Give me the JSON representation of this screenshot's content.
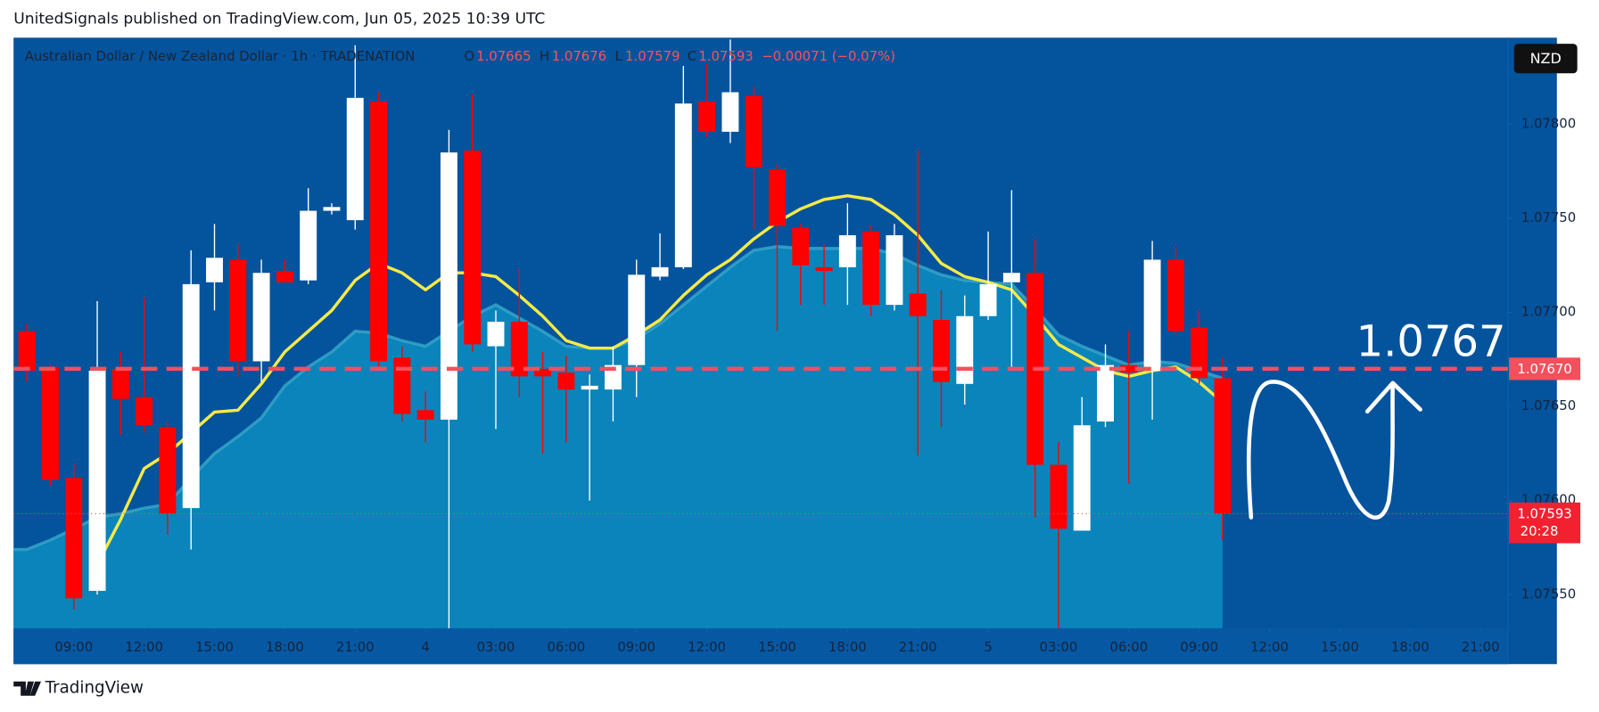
{
  "header": {
    "text": "UnitedSignals published on TradingView.com, Jun 05, 2025 10:39 UTC"
  },
  "footer": {
    "brand": "TradingView"
  },
  "chart_data": {
    "type": "candlestick",
    "title": "Australian Dollar / New Zealand Dollar · 1h · TRADENATION",
    "ohlc_letters": [
      "O",
      "H",
      "L",
      "C"
    ],
    "change": "−0.00071 (−0.07%)",
    "currency": "NZD",
    "countdown": "20:28",
    "up_color": "#ffffff",
    "down_color": "#ff0000",
    "grid": false,
    "candles": {
      "open": [
        1.0769,
        1.07671,
        1.07612,
        1.07552,
        1.0767,
        1.07655,
        1.07639,
        1.07596,
        1.07716,
        1.07728,
        1.07674,
        1.07722,
        1.07717,
        1.07754,
        1.07749,
        1.07812,
        1.07676,
        1.07648,
        1.07643,
        1.07786,
        1.07682,
        1.07695,
        1.0767,
        1.07668,
        1.07659,
        1.07659,
        1.07672,
        1.07719,
        1.07724,
        1.07812,
        1.07796,
        1.07815,
        1.07776,
        1.07745,
        1.07724,
        1.07724,
        1.07743,
        1.07704,
        1.0771,
        1.07696,
        1.07662,
        1.07698,
        1.07716,
        1.07721,
        1.07619,
        1.07584,
        1.07642,
        1.07672,
        1.07669,
        1.07728,
        1.07692,
        1.07665
      ],
      "high": [
        1.07694,
        1.07672,
        1.0762,
        1.07706,
        1.07679,
        1.07708,
        1.07642,
        1.07733,
        1.07747,
        1.07736,
        1.07728,
        1.07728,
        1.07766,
        1.07758,
        1.07842,
        1.07817,
        1.07682,
        1.07658,
        1.07797,
        1.07816,
        1.07701,
        1.07723,
        1.07679,
        1.07677,
        1.07667,
        1.07682,
        1.07728,
        1.07742,
        1.07831,
        1.07832,
        1.07845,
        1.0782,
        1.07779,
        1.07747,
        1.07736,
        1.07758,
        1.07746,
        1.07747,
        1.07786,
        1.07712,
        1.07709,
        1.07743,
        1.07765,
        1.07739,
        1.07631,
        1.07655,
        1.07683,
        1.0769,
        1.07738,
        1.07735,
        1.07701,
        1.07676
      ],
      "low": [
        1.07663,
        1.07608,
        1.07542,
        1.0755,
        1.07635,
        1.07636,
        1.07582,
        1.07574,
        1.07701,
        1.07666,
        1.07663,
        1.07716,
        1.07715,
        1.07752,
        1.07744,
        1.07671,
        1.07642,
        1.07631,
        1.07532,
        1.07679,
        1.07638,
        1.07655,
        1.07625,
        1.07631,
        1.076,
        1.07642,
        1.07655,
        1.07717,
        1.07723,
        1.07793,
        1.0779,
        1.07744,
        1.0769,
        1.07704,
        1.07704,
        1.07704,
        1.07698,
        1.07701,
        1.07624,
        1.07639,
        1.07651,
        1.07696,
        1.07671,
        1.07591,
        1.07532,
        1.07584,
        1.07639,
        1.07609,
        1.07643,
        1.07688,
        1.07662,
        1.07579
      ],
      "close": [
        1.07669,
        1.07611,
        1.07548,
        1.07669,
        1.07654,
        1.0764,
        1.07593,
        1.07715,
        1.07729,
        1.07674,
        1.07721,
        1.07716,
        1.07754,
        1.07756,
        1.07814,
        1.07674,
        1.07646,
        1.07643,
        1.07785,
        1.07683,
        1.07695,
        1.07666,
        1.07666,
        1.07659,
        1.07661,
        1.07672,
        1.0772,
        1.07724,
        1.07811,
        1.07796,
        1.07817,
        1.07777,
        1.07746,
        1.07725,
        1.07722,
        1.07741,
        1.07704,
        1.07741,
        1.07698,
        1.07663,
        1.07698,
        1.07715,
        1.07721,
        1.07619,
        1.07585,
        1.0764,
        1.07672,
        1.07668,
        1.07728,
        1.0769,
        1.07665,
        1.07593
      ]
    },
    "series": [
      {
        "type": "area",
        "color": "#0a84bb",
        "line_color": "#3aa6c9",
        "values": [
          1.07574,
          1.07579,
          1.07585,
          1.07591,
          1.07593,
          1.07596,
          1.07598,
          1.07612,
          1.07625,
          1.07634,
          1.07644,
          1.07661,
          1.07671,
          1.07679,
          1.0769,
          1.07689,
          1.07685,
          1.07682,
          1.0769,
          1.07698,
          1.07704,
          1.07697,
          1.0769,
          1.07682,
          1.07681,
          1.07681,
          1.07686,
          1.07694,
          1.07704,
          1.07714,
          1.07724,
          1.07733,
          1.07735,
          1.07734,
          1.07734,
          1.07734,
          1.07734,
          1.07731,
          1.07725,
          1.0772,
          1.07717,
          1.07716,
          1.07715,
          1.07702,
          1.07688,
          1.07682,
          1.07677,
          1.07672,
          1.07674,
          1.07673,
          1.07669,
          1.07665
        ]
      },
      {
        "type": "line",
        "color": "#f7ea48",
        "values": [
          null,
          null,
          null,
          1.07566,
          1.0759,
          1.07617,
          1.07625,
          1.07636,
          1.07647,
          1.07648,
          1.07662,
          1.07679,
          1.0769,
          1.07701,
          1.07717,
          1.07726,
          1.07721,
          1.07712,
          1.07721,
          1.07721,
          1.07719,
          1.07709,
          1.07698,
          1.07685,
          1.07681,
          1.07681,
          1.07688,
          1.07696,
          1.07709,
          1.0772,
          1.07728,
          1.07739,
          1.07748,
          1.07755,
          1.0776,
          1.07762,
          1.0776,
          1.07752,
          1.07741,
          1.07726,
          1.07719,
          1.07716,
          1.07712,
          1.07698,
          1.07683,
          1.07676,
          1.07669,
          1.07666,
          1.07669,
          1.07671,
          1.07663,
          1.07652
        ]
      }
    ],
    "target": {
      "value": 1.0767,
      "label": "1.07670",
      "color": "#f2505c"
    },
    "ylim": [
      1.07532,
      1.07846
    ],
    "yticks": [
      {
        "value": 1.0755,
        "label": "1.07550"
      },
      {
        "value": 1.076,
        "label": "1.07600"
      },
      {
        "value": 1.0765,
        "label": "1.07650"
      },
      {
        "value": 1.077,
        "label": "1.07700"
      },
      {
        "value": 1.0775,
        "label": "1.07750"
      },
      {
        "value": 1.078,
        "label": "1.07800"
      }
    ],
    "xlim": [
      -0.57,
      63.17
    ],
    "xticks": [
      {
        "value": 2,
        "label": "09:00"
      },
      {
        "value": 5,
        "label": "12:00"
      },
      {
        "value": 8,
        "label": "15:00"
      },
      {
        "value": 11,
        "label": "18:00"
      },
      {
        "value": 14,
        "label": "21:00"
      },
      {
        "value": 17,
        "label": "4"
      },
      {
        "value": 20,
        "label": "03:00"
      },
      {
        "value": 23,
        "label": "06:00"
      },
      {
        "value": 26,
        "label": "09:00"
      },
      {
        "value": 29,
        "label": "12:00"
      },
      {
        "value": 32,
        "label": "15:00"
      },
      {
        "value": 35,
        "label": "18:00"
      },
      {
        "value": 38,
        "label": "21:00"
      },
      {
        "value": 41,
        "label": "5"
      },
      {
        "value": 44,
        "label": "03:00"
      },
      {
        "value": 47,
        "label": "06:00"
      },
      {
        "value": 50,
        "label": "09:00"
      },
      {
        "value": 53,
        "label": "12:00"
      },
      {
        "value": 56,
        "label": "15:00"
      },
      {
        "value": 59,
        "label": "18:00"
      },
      {
        "value": 62,
        "label": "21:00"
      }
    ]
  }
}
